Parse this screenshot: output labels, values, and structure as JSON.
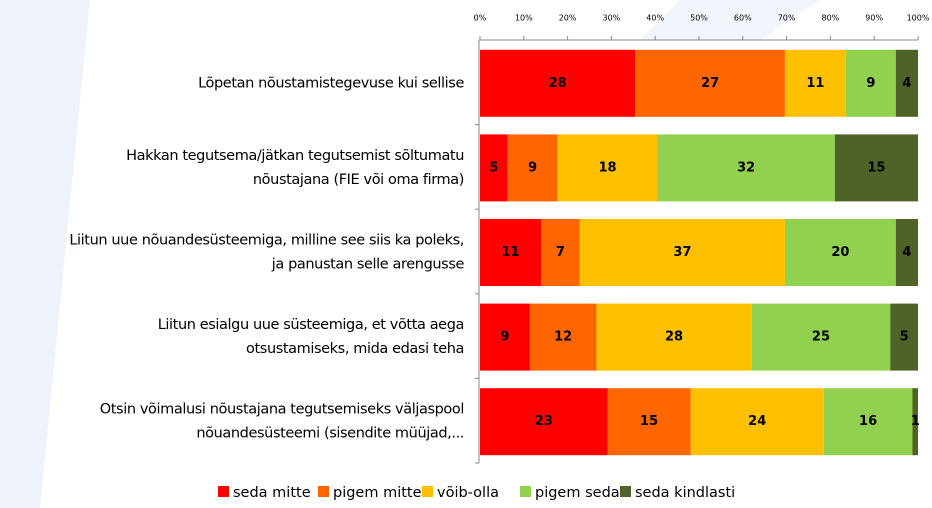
{
  "chart_data": {
    "type": "bar",
    "orientation": "horizontal",
    "stacking": "percent",
    "categories": [
      [
        "Lõpetan nõustamistegevuse kui sellise"
      ],
      [
        "Hakkan tegutsema/jätkan tegutsemist sõltumatu",
        "nõustajana (FIE või oma firma)"
      ],
      [
        "Liitun uue nõuandesüsteemiga, milline see siis ka poleks,",
        "ja panustan selle arengusse"
      ],
      [
        "Liitun esialgu uue süsteemiga, et võtta aega",
        "otsustamiseks, mida edasi teha"
      ],
      [
        "Otsin võimalusi nõustajana tegutsemiseks väljaspool",
        "nõuandesüsteemi (sisendite müüjad,..."
      ]
    ],
    "series": [
      {
        "name": "seda mitte",
        "color": "#ff0000",
        "values": [
          28,
          5,
          11,
          9,
          23
        ]
      },
      {
        "name": "pigem mitte",
        "color": "#ff6600",
        "values": [
          27,
          9,
          7,
          12,
          15
        ]
      },
      {
        "name": "võib-olla",
        "color": "#ffc000",
        "values": [
          11,
          18,
          37,
          28,
          24
        ]
      },
      {
        "name": "pigem seda",
        "color": "#92d050",
        "values": [
          9,
          32,
          20,
          25,
          16
        ]
      },
      {
        "name": "seda kindlasti",
        "color": "#4f6228",
        "values": [
          4,
          15,
          4,
          5,
          1
        ]
      }
    ],
    "xlim": [
      0,
      100
    ],
    "xticks": [
      {
        "value": 0,
        "label": "0%"
      },
      {
        "value": 10,
        "label": "10%"
      },
      {
        "value": 20,
        "label": "20%"
      },
      {
        "value": 30,
        "label": "30%"
      },
      {
        "value": 40,
        "label": "40%"
      },
      {
        "value": 50,
        "label": "50%"
      },
      {
        "value": 60,
        "label": "60%"
      },
      {
        "value": 70,
        "label": "70%"
      },
      {
        "value": 80,
        "label": "80%"
      },
      {
        "value": 90,
        "label": "90%"
      },
      {
        "value": 100,
        "label": "100%"
      }
    ],
    "legend": "bottom"
  }
}
